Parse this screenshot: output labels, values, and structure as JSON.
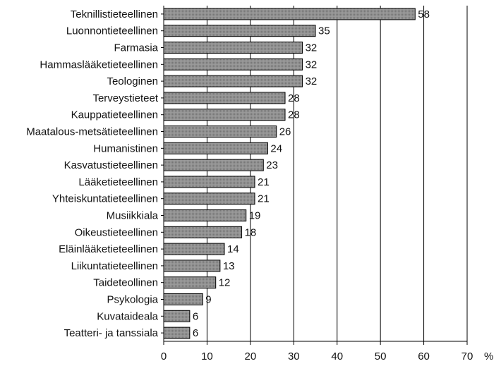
{
  "chart_data": {
    "type": "bar",
    "orientation": "horizontal",
    "categories": [
      "Teknillistieteellinen",
      "Luonnontieteellinen",
      "Farmasia",
      "Hammaslääketieteellinen",
      "Teologinen",
      "Terveystieteet",
      "Kauppatieteellinen",
      "Maatalous-metsätieteellinen",
      "Humanistinen",
      "Kasvatustieteellinen",
      "Lääketieteellinen",
      "Yhteiskuntatieteellinen",
      "Musiikkiala",
      "Oikeustieteellinen",
      "Eläinlääketieteellinen",
      "Liikuntatieteellinen",
      "Taideteollinen",
      "Psykologia",
      "Kuvataideala",
      "Teatteri- ja tanssiala"
    ],
    "values": [
      58,
      35,
      32,
      32,
      32,
      28,
      28,
      26,
      24,
      23,
      21,
      21,
      19,
      18,
      14,
      13,
      12,
      9,
      6,
      6
    ],
    "value_labels": [
      "58",
      "35",
      "32",
      "32",
      "32",
      "28",
      "28",
      "26",
      "24",
      "23",
      "21",
      "21",
      "19",
      "18",
      "14",
      "13",
      "12",
      "9",
      "6",
      "6"
    ],
    "xlim": [
      0,
      70
    ],
    "x_ticks": [
      "0",
      "10",
      "20",
      "30",
      "40",
      "50",
      "60",
      "70"
    ],
    "x_unit": "%",
    "grid": true,
    "bar_color": "#9a9a9a"
  }
}
